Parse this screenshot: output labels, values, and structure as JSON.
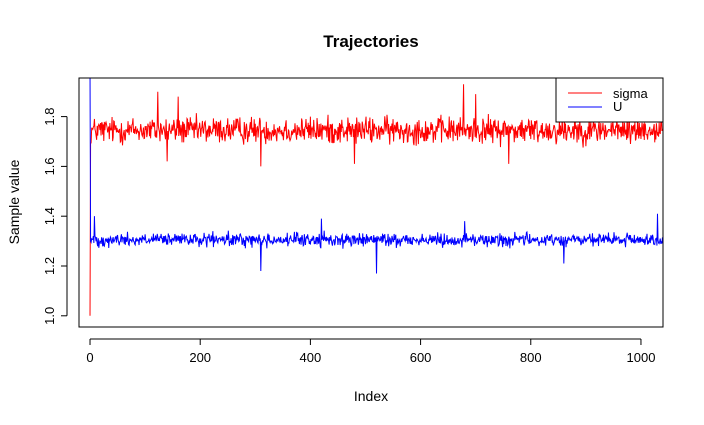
{
  "chart_data": {
    "type": "line",
    "title": "Trajectories",
    "xlabel": "Index",
    "ylabel": "Sample value",
    "xlim": [
      -20,
      1040
    ],
    "ylim": [
      0.955,
      1.955
    ],
    "xticks": [
      0,
      200,
      400,
      600,
      800,
      1000
    ],
    "yticks": [
      1.0,
      1.2,
      1.4,
      1.6,
      1.8
    ],
    "xtick_labels": [
      "0",
      "200",
      "400",
      "600",
      "800",
      "1000"
    ],
    "ytick_labels": [
      "1.0",
      "1.2",
      "1.4",
      "1.6",
      "1.8"
    ],
    "grid": false,
    "legend": "top-right",
    "n_points": 1040,
    "series": [
      {
        "name": "sigma",
        "color": "#ff0000",
        "start": [
          1.0,
          1.69
        ],
        "mean": 1.745,
        "spread": 0.05,
        "min": 1.6,
        "max": 1.93,
        "spikes": [
          [
            123,
            1.9
          ],
          [
            160,
            1.88
          ],
          [
            678,
            1.93
          ],
          [
            700,
            1.89
          ],
          [
            880,
            1.88
          ],
          [
            140,
            1.62
          ],
          [
            310,
            1.6
          ],
          [
            480,
            1.61
          ],
          [
            760,
            1.61
          ]
        ]
      },
      {
        "name": "U",
        "color": "#0000ff",
        "start": [
          1.98,
          1.3
        ],
        "mean": 1.305,
        "spread": 0.025,
        "min": 1.17,
        "max": 1.41,
        "spikes": [
          [
            8,
            1.4
          ],
          [
            310,
            1.18
          ],
          [
            520,
            1.17
          ],
          [
            860,
            1.21
          ],
          [
            1030,
            1.41
          ],
          [
            420,
            1.39
          ],
          [
            680,
            1.38
          ]
        ]
      }
    ]
  }
}
